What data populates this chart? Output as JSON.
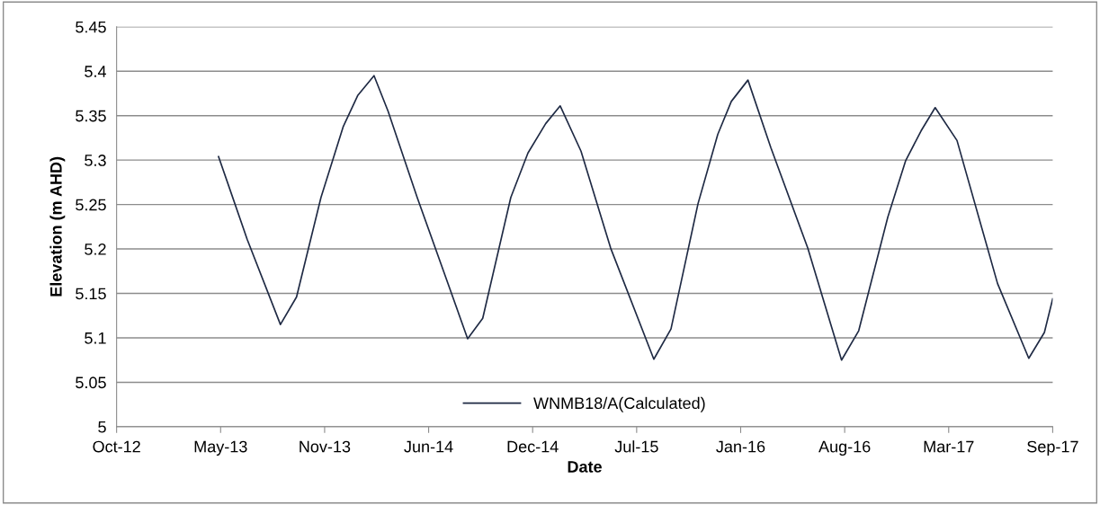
{
  "chart_data": {
    "type": "line",
    "xlabel": "Date",
    "ylabel": "Elevation (m AHD)",
    "x": [
      "2013-04-29",
      "2013-06-23",
      "2013-08-26",
      "2013-09-26",
      "2013-11-12",
      "2013-12-25",
      "2014-01-22",
      "2014-02-22",
      "2014-03-21",
      "2014-05-16",
      "2014-07-10",
      "2014-08-21",
      "2014-09-19",
      "2014-11-12",
      "2014-12-15",
      "2015-01-18",
      "2015-02-15",
      "2015-03-27",
      "2015-05-23",
      "2015-08-14",
      "2015-09-16",
      "2015-11-07",
      "2015-12-15",
      "2016-01-10",
      "2016-02-11",
      "2016-03-26",
      "2016-06-05",
      "2016-08-09",
      "2016-09-11",
      "2016-11-06",
      "2016-12-10",
      "2017-01-09",
      "2017-02-05",
      "2017-03-19",
      "2017-06-05",
      "2017-08-04",
      "2017-09-03",
      "2017-09-19"
    ],
    "series": [
      {
        "name": "WNMB18/A(Calculated)",
        "color": "#1f2a44",
        "values": [
          5.304,
          5.211,
          5.115,
          5.146,
          5.258,
          5.338,
          5.373,
          5.395,
          5.355,
          5.258,
          5.168,
          5.099,
          5.122,
          5.258,
          5.308,
          5.341,
          5.361,
          5.31,
          5.201,
          5.076,
          5.11,
          5.251,
          5.329,
          5.366,
          5.39,
          5.314,
          5.201,
          5.075,
          5.108,
          5.236,
          5.299,
          5.333,
          5.359,
          5.322,
          5.161,
          5.077,
          5.106,
          5.144
        ]
      }
    ],
    "xlim": [
      "2012-10-15",
      "2017-09-19"
    ],
    "xticks": [
      {
        "value": "2012-10-15",
        "label": "Oct-12"
      },
      {
        "value": "2013-05-03",
        "label": "May-13"
      },
      {
        "value": "2013-11-19",
        "label": "Nov-13"
      },
      {
        "value": "2014-06-07",
        "label": "Jun-14"
      },
      {
        "value": "2014-12-24",
        "label": "Dec-14"
      },
      {
        "value": "2015-07-12",
        "label": "Jul-15"
      },
      {
        "value": "2016-01-28",
        "label": "Jan-16"
      },
      {
        "value": "2016-08-15",
        "label": "Aug-16"
      },
      {
        "value": "2017-03-03",
        "label": "Mar-17"
      },
      {
        "value": "2017-09-19",
        "label": "Sep-17"
      }
    ],
    "ylim": [
      5,
      5.45
    ],
    "yticks": [
      5,
      5.05,
      5.1,
      5.15,
      5.2,
      5.25,
      5.3,
      5.35,
      5.4,
      5.45
    ],
    "grid": "y",
    "legend": "bottom",
    "marker": "none",
    "line_style": "solid"
  }
}
